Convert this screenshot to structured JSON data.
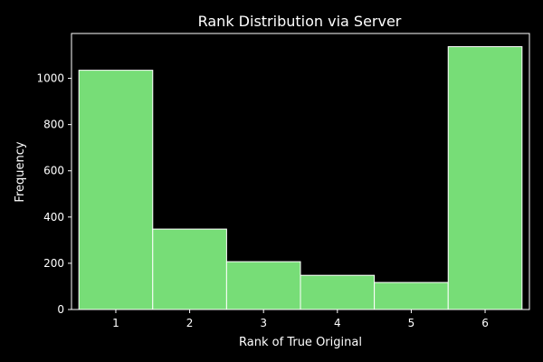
{
  "chart_data": {
    "type": "bar",
    "title": "Rank Distribution via Server",
    "xlabel": "Rank of True Original",
    "ylabel": "Frequency",
    "categories": [
      "1",
      "2",
      "3",
      "4",
      "5",
      "6"
    ],
    "values": [
      1035,
      348,
      207,
      148,
      117,
      1137
    ],
    "xlim": [
      0.4,
      6.6
    ],
    "ylim": [
      0,
      1194
    ],
    "yticks": [
      0,
      200,
      400,
      600,
      800,
      1000
    ],
    "grid": false,
    "legend": "none"
  },
  "colors": {
    "background": "#000000",
    "bar_fill": "#77dd77",
    "bar_edge": "#ffffff",
    "axis": "#ffffff",
    "text": "#ffffff"
  }
}
